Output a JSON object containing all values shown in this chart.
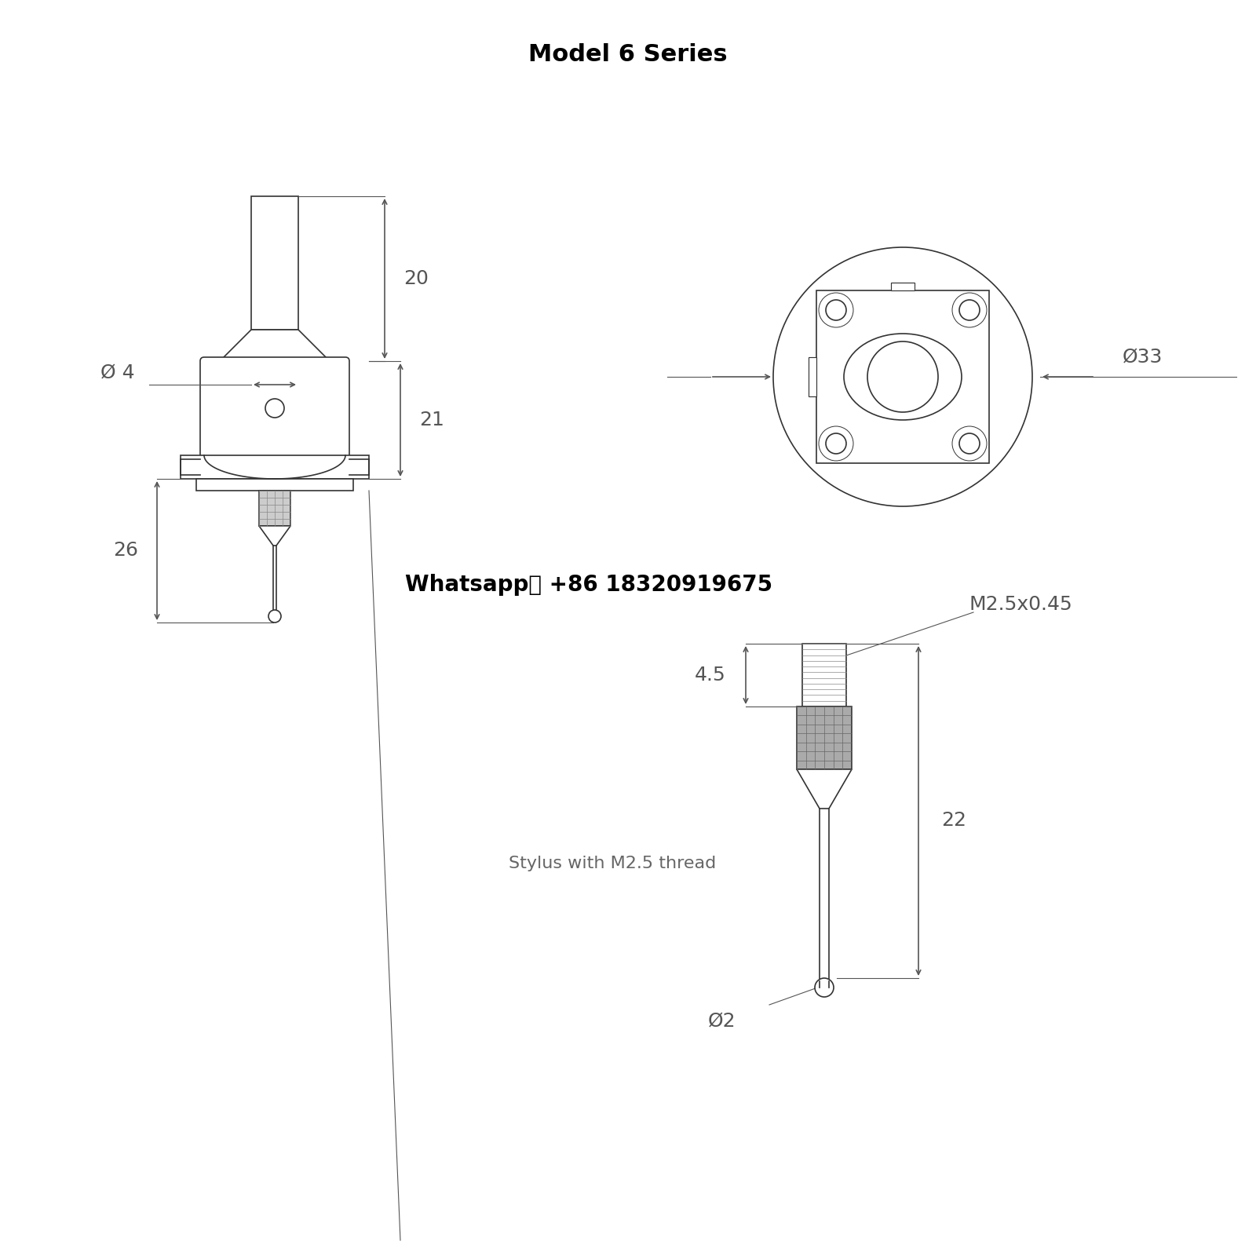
{
  "title": "Model 6 Series",
  "title_fontsize": 22,
  "title_color": "#000000",
  "bg_color": "#ffffff",
  "line_color": "#333333",
  "dim_color": "#555555",
  "whatsapp_text": "Whatsapp： +86 18320919675",
  "whatsapp_fontsize": 20,
  "stylus_text": "Stylus with M2.5 thread",
  "stylus_fontsize": 16,
  "dim_fontsize": 18,
  "label_fontsize": 20,
  "dims": {
    "shaft_diameter": "Ø 4",
    "shaft_height": "20",
    "body_height": "21",
    "total_lower": "26",
    "circle_diameter": "Ø33",
    "thread_label": "M2.5x0.45",
    "thread_height": "4.5",
    "stylus_total": "22",
    "ball_diameter": "Ø2"
  }
}
